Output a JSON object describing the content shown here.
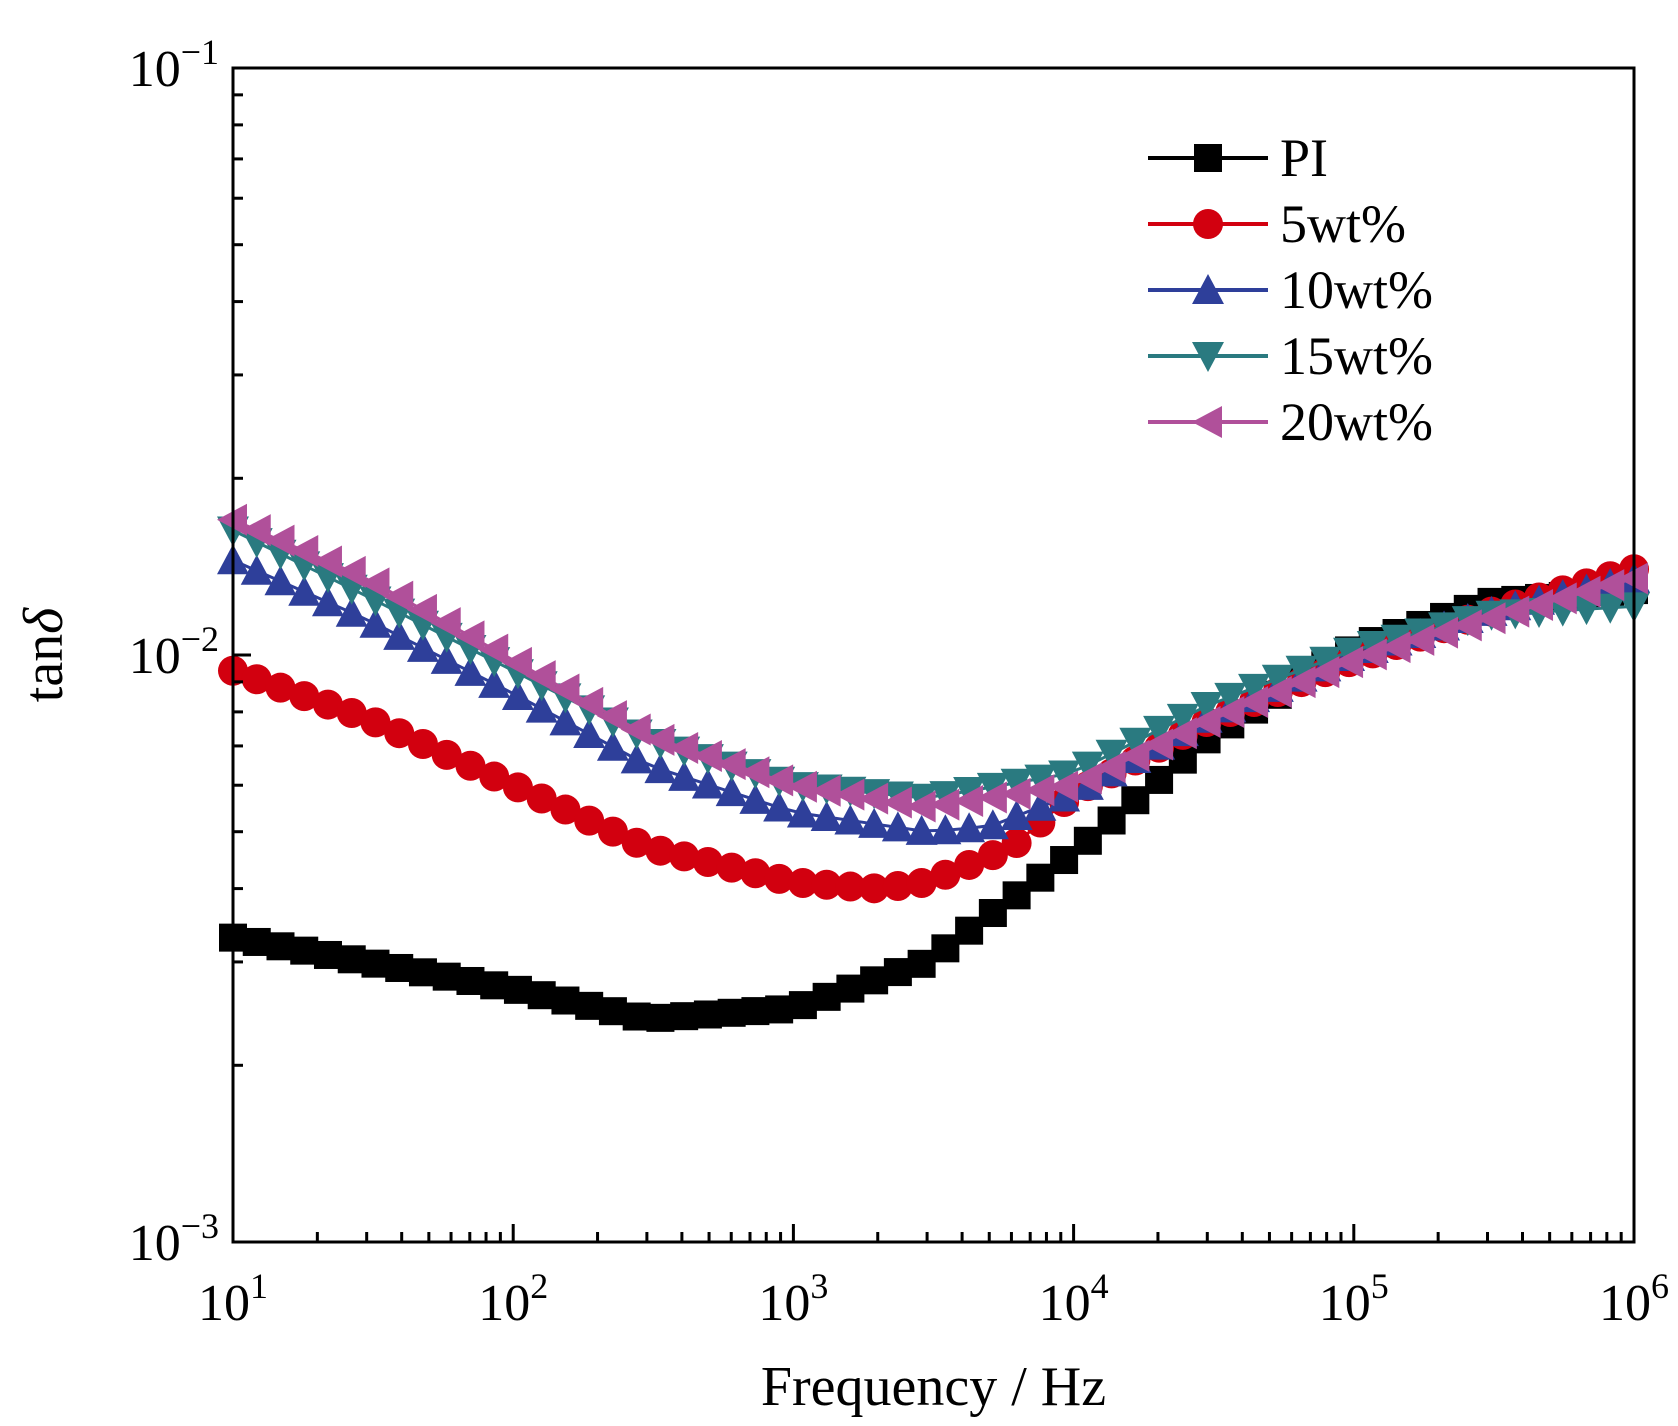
{
  "chart_data": {
    "type": "line",
    "xlabel": "Frequency / Hz",
    "ylabel": "tanδ",
    "ylabel_main": "tan",
    "ylabel_italic": "δ",
    "x_scale": "log",
    "y_scale": "log",
    "xlim": [
      10,
      1000000
    ],
    "ylim": [
      0.001,
      0.1
    ],
    "x_ticks": [
      {
        "value": 10,
        "base": "10",
        "exp": "1"
      },
      {
        "value": 100,
        "base": "10",
        "exp": "2"
      },
      {
        "value": 1000,
        "base": "10",
        "exp": "3"
      },
      {
        "value": 10000,
        "base": "10",
        "exp": "4"
      },
      {
        "value": 100000,
        "base": "10",
        "exp": "5"
      },
      {
        "value": 1000000,
        "base": "10",
        "exp": "6"
      }
    ],
    "y_ticks": [
      {
        "value": 0.001,
        "base": "10",
        "exp": "−3"
      },
      {
        "value": 0.01,
        "base": "10",
        "exp": "−2"
      },
      {
        "value": 0.1,
        "base": "10",
        "exp": "−1"
      }
    ],
    "grid": false,
    "legend_position": "top-right",
    "series": [
      {
        "name": "PI",
        "color": "#000000",
        "marker": "square",
        "x": [
          10,
          100,
          300,
          1000,
          3000,
          10000,
          30000,
          100000,
          300000,
          1000000
        ],
        "y": [
          0.0033,
          0.0027,
          0.0024,
          0.0025,
          0.003,
          0.0046,
          0.0072,
          0.0103,
          0.0123,
          0.0129
        ]
      },
      {
        "name": "5wt%",
        "color": "#d2000f",
        "marker": "circle",
        "x": [
          10,
          30,
          100,
          300,
          1000,
          2000,
          3000,
          6000,
          10000,
          30000,
          100000,
          300000,
          1000000
        ],
        "y": [
          0.0094,
          0.0078,
          0.006,
          0.0047,
          0.0041,
          0.004,
          0.0041,
          0.0047,
          0.0058,
          0.0077,
          0.0098,
          0.0118,
          0.014
        ]
      },
      {
        "name": "10wt%",
        "color": "#2e3f9a",
        "marker": "triangle-up",
        "x": [
          10,
          30,
          100,
          300,
          1000,
          3000,
          5000,
          10000,
          30000,
          100000,
          300000,
          1000000
        ],
        "y": [
          0.0145,
          0.0115,
          0.0086,
          0.0065,
          0.0054,
          0.005,
          0.0051,
          0.0058,
          0.0078,
          0.01,
          0.0118,
          0.0135
        ]
      },
      {
        "name": "15wt%",
        "color": "#2a7a80",
        "marker": "triangle-down",
        "x": [
          10,
          30,
          100,
          300,
          1000,
          3000,
          10000,
          30000,
          100000,
          300000,
          1000000
        ],
        "y": [
          0.0163,
          0.0126,
          0.0094,
          0.0072,
          0.006,
          0.0057,
          0.0063,
          0.0082,
          0.0102,
          0.0117,
          0.0121
        ]
      },
      {
        "name": "20wt%",
        "color": "#b0509a",
        "marker": "triangle-left",
        "x": [
          10,
          30,
          100,
          300,
          1000,
          3000,
          10000,
          30000,
          100000,
          300000,
          1000000
        ],
        "y": [
          0.017,
          0.0135,
          0.0098,
          0.0073,
          0.006,
          0.0055,
          0.006,
          0.0077,
          0.0098,
          0.0115,
          0.0135
        ]
      }
    ]
  }
}
